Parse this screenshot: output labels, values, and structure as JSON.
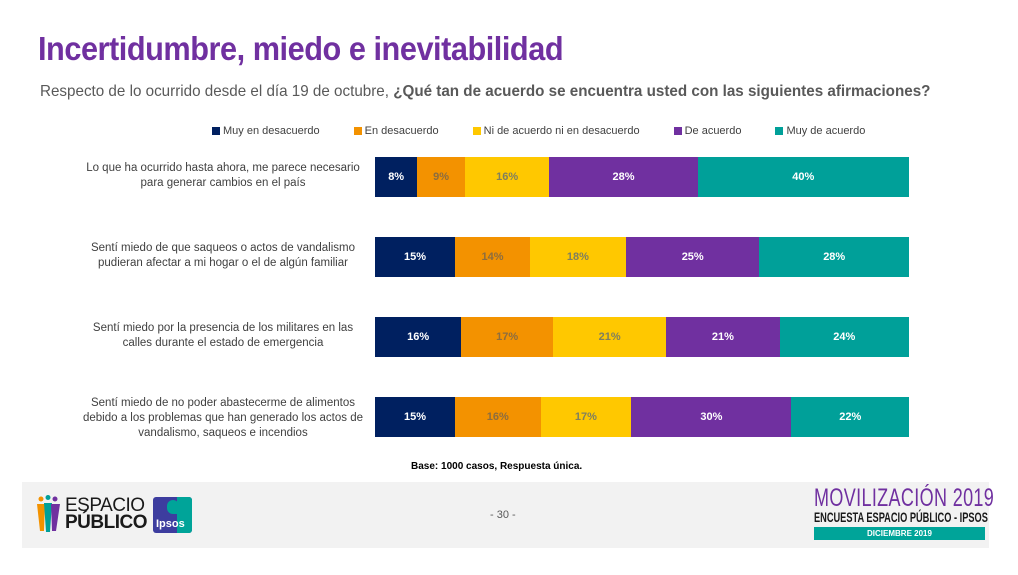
{
  "header": {
    "title": "Incertidumbre, miedo e inevitabilidad",
    "subtitle_plain": "Respecto de lo ocurrido desde el día 19 de octubre, ",
    "subtitle_bold": "¿Qué tan de acuerdo se encuentra usted con las siguientes afirmaciones?"
  },
  "chart_data": {
    "type": "bar",
    "orientation": "horizontal",
    "stacked": true,
    "normalized": true,
    "title": "",
    "xlabel": "",
    "ylabel": "",
    "legend_position": "top",
    "grid": false,
    "categories": [
      "Lo que ha ocurrido hasta ahora, me parece necesario para generar cambios en el país",
      "Sentí miedo de que saqueos o actos de vandalismo pudieran afectar a mi hogar o el de algún familiar",
      "Sentí miedo por la presencia de los militares en las calles durante el estado de emergencia",
      "Sentí miedo de no poder abastecerme de alimentos debido a los problemas que han generado los actos de vandalismo, saqueos e incendios"
    ],
    "series": [
      {
        "name": "Muy en desacuerdo",
        "color": "#002060",
        "label_color": "#ffffff",
        "values": [
          8,
          15,
          16,
          15
        ]
      },
      {
        "name": "En desacuerdo",
        "color": "#f39200",
        "label_color": "#8c6d3f",
        "values": [
          9,
          14,
          17,
          16
        ]
      },
      {
        "name": "Ni de acuerdo ni en desacuerdo",
        "color": "#ffc800",
        "label_color": "#7f7f5f",
        "values": [
          16,
          18,
          21,
          17
        ]
      },
      {
        "name": "De acuerdo",
        "color": "#7030a0",
        "label_color": "#ffffff",
        "values": [
          28,
          25,
          21,
          30
        ]
      },
      {
        "name": "Muy de acuerdo",
        "color": "#00a099",
        "label_color": "#ffffff",
        "values": [
          40,
          28,
          24,
          22
        ]
      }
    ],
    "value_suffix": "%"
  },
  "footer": {
    "base_note": "Base: 1000 casos, Respuesta única.",
    "page_number": "- 30 -",
    "logo_left_line1": "ESPACIO",
    "logo_left_line2": "PÚBLICO",
    "logo_ipsos": "Ipsos",
    "logo_right_title": "MOVILIZACIÓN 2019",
    "logo_right_subtitle": "ENCUESTA ESPACIO PÚBLICO - IPSOS",
    "logo_right_date": "DICIEMBRE 2019"
  }
}
